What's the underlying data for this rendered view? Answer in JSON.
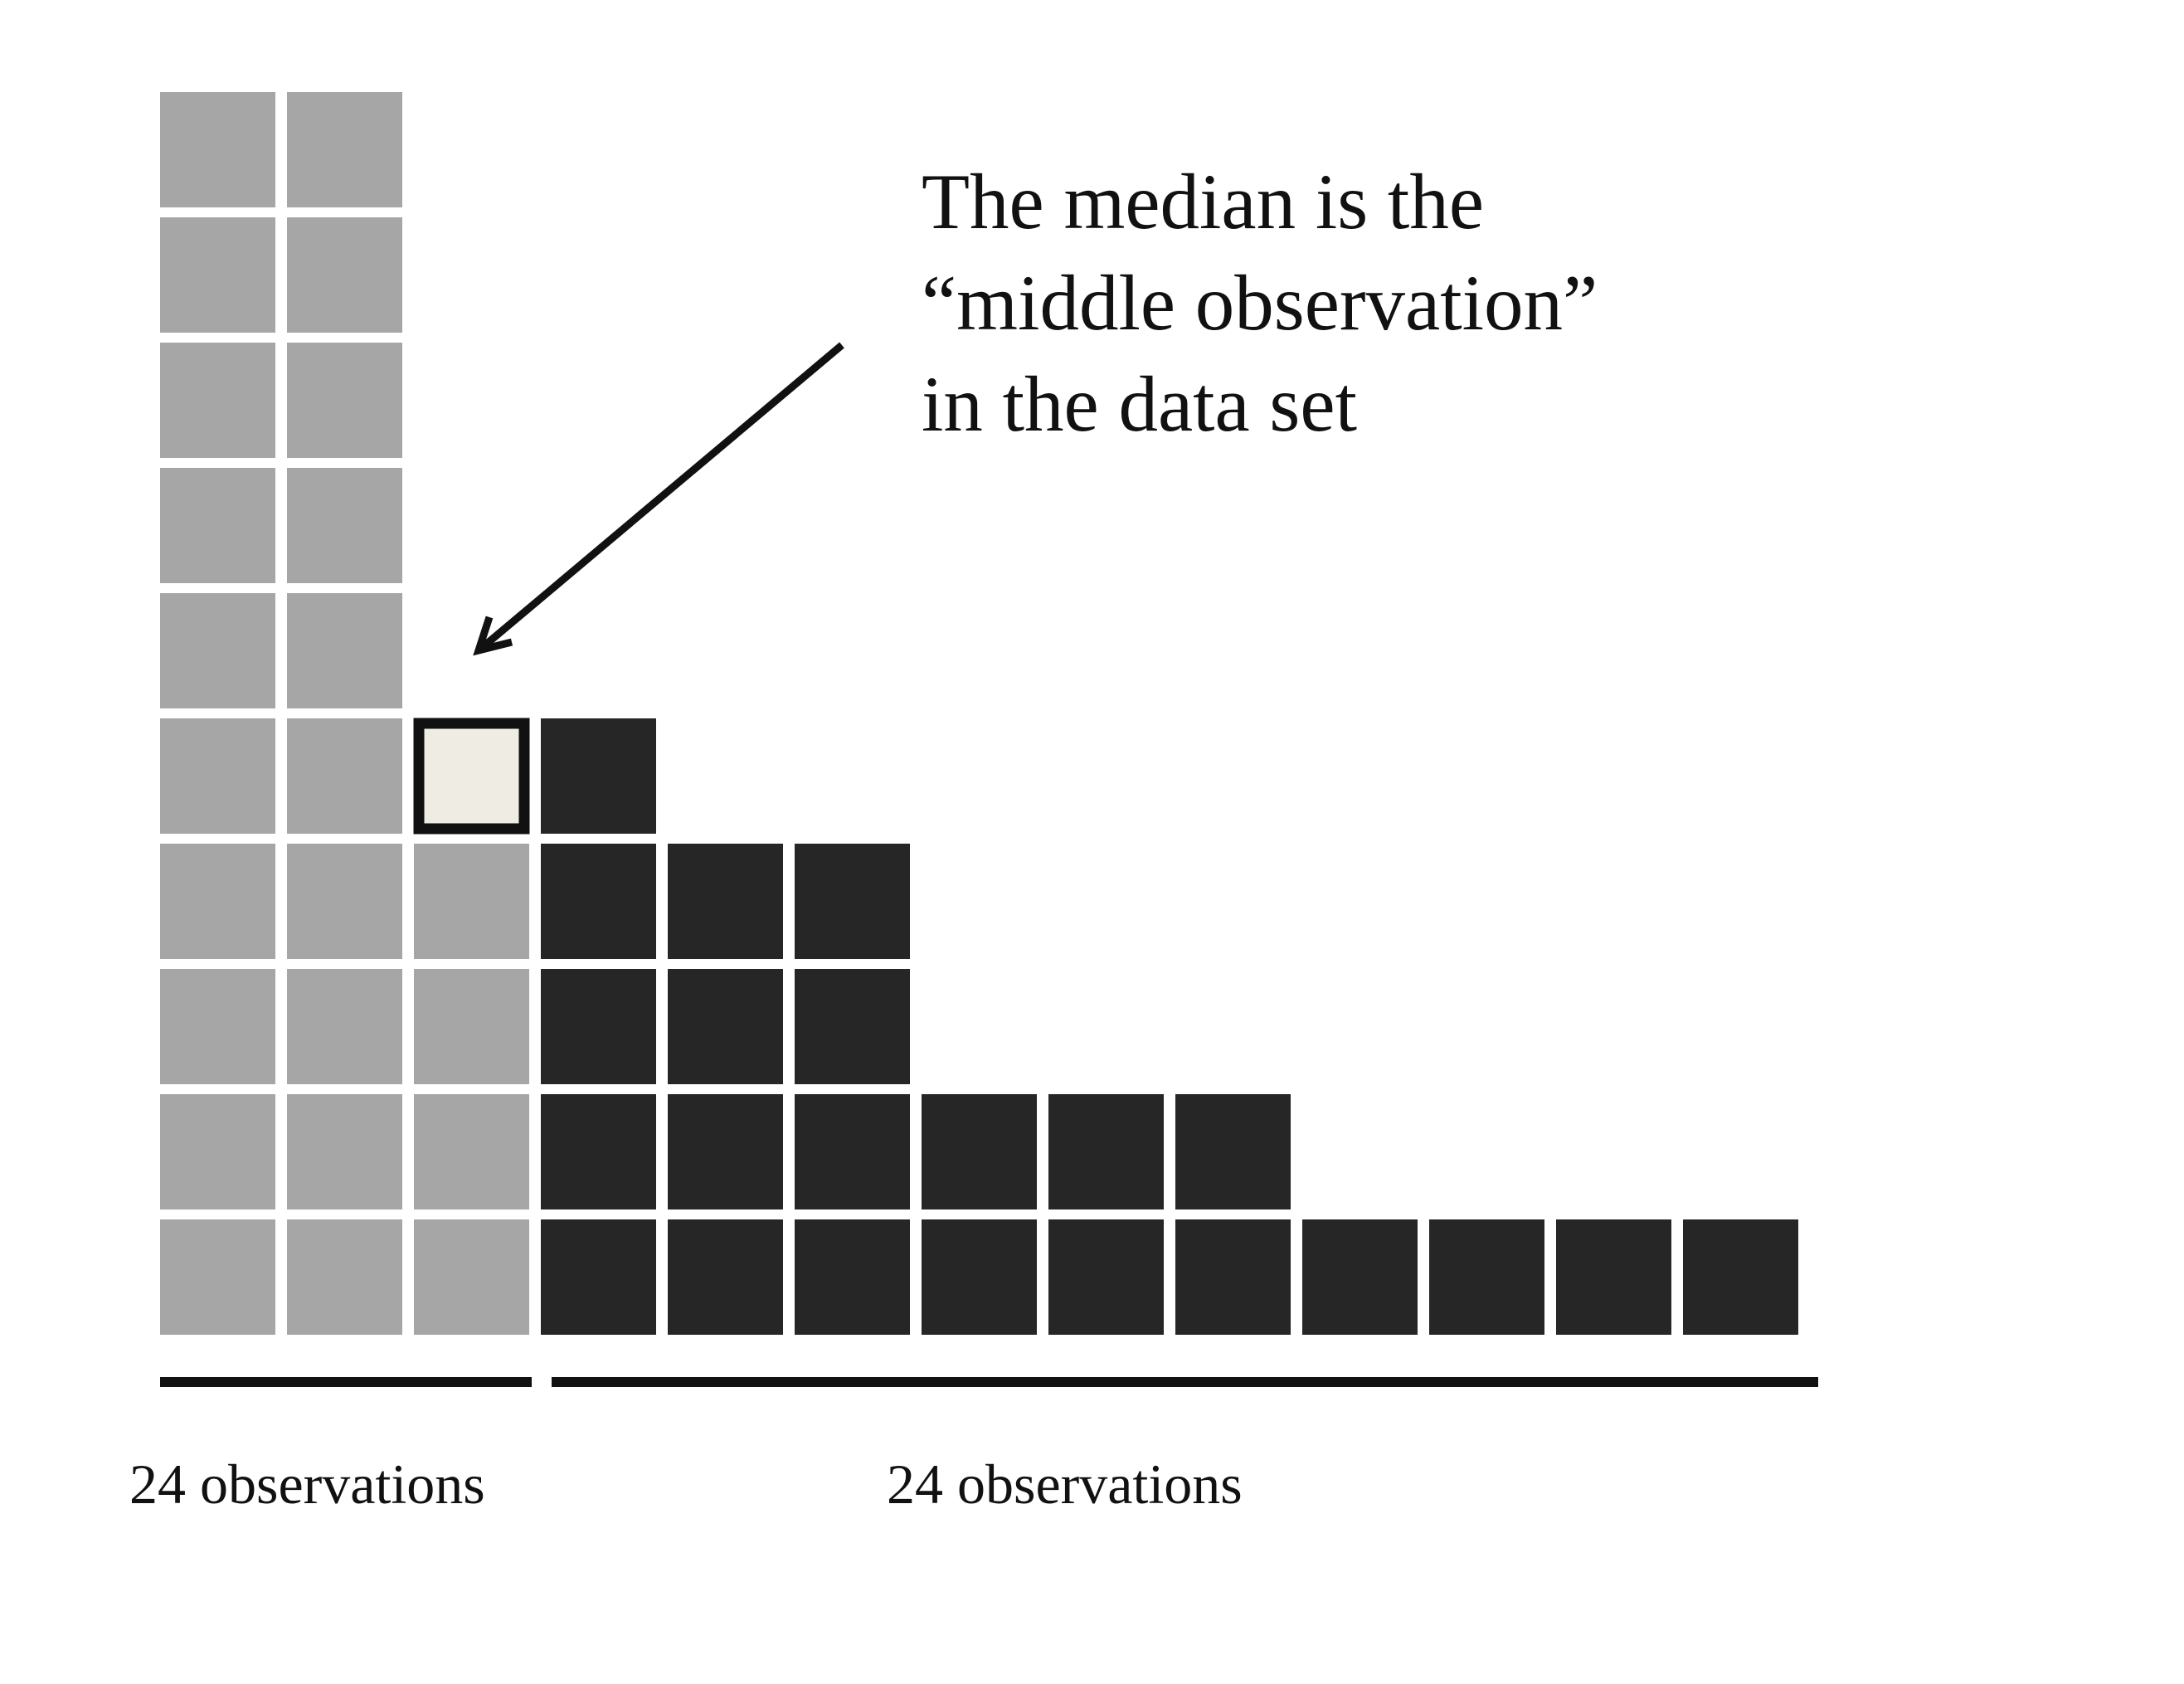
{
  "chart_data": {
    "type": "unit-histogram",
    "categories": [
      null,
      null,
      null,
      null,
      null,
      null,
      null,
      null,
      null,
      null,
      null,
      null,
      null
    ],
    "series": [
      {
        "color": "#a6a6a6",
        "values": [
          10,
          10,
          4,
          0,
          0,
          0,
          0,
          0,
          0,
          0,
          0,
          0,
          0
        ]
      },
      {
        "color": "#efede3",
        "values": [
          0,
          0,
          1,
          0,
          0,
          0,
          0,
          0,
          0,
          0,
          0,
          0,
          0
        ]
      },
      {
        "color": "#262626",
        "values": [
          0,
          0,
          0,
          5,
          4,
          4,
          2,
          2,
          2,
          1,
          1,
          1,
          1
        ]
      }
    ],
    "annotation": [
      "The median is the",
      "“middle observation”",
      "in the data set"
    ],
    "group_labels": [
      "24 observations",
      "24 observations"
    ]
  }
}
